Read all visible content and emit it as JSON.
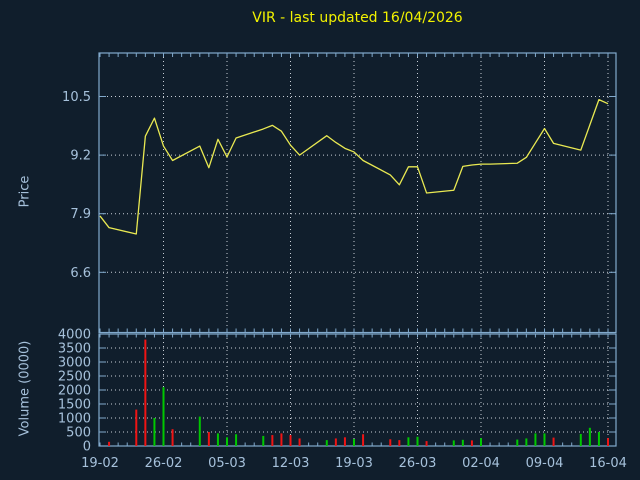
{
  "title": "VIR - last updated 16/04/2026",
  "colors": {
    "background": "#101e2c",
    "frame": "#82aacd",
    "tick_text": "#a6c1db",
    "title_text": "#f2f200",
    "price_line": "#e9e952",
    "grid": "#c7ced6",
    "volume_up": "#00c800",
    "volume_down": "#f01414"
  },
  "chart_data": [
    {
      "type": "line",
      "name": "price",
      "ylabel": "Price",
      "yticks": [
        10.5,
        9.2,
        7.9,
        6.6
      ],
      "ylim": [
        5.3,
        11.5
      ],
      "grid": true,
      "x_day_offsets": [
        0,
        1,
        4,
        5,
        6,
        7,
        8,
        11,
        12,
        13,
        14,
        15,
        18,
        19,
        20,
        21,
        22,
        25,
        26,
        27,
        28,
        29,
        32,
        33,
        34,
        35,
        36,
        39,
        40,
        41,
        42,
        43,
        46,
        47,
        48,
        49,
        50,
        53,
        54,
        55,
        56
      ],
      "prices": [
        7.85,
        7.59,
        7.45,
        9.62,
        10.02,
        9.4,
        9.08,
        9.4,
        8.92,
        9.55,
        9.16,
        9.58,
        9.78,
        9.86,
        9.73,
        9.42,
        9.2,
        9.63,
        9.48,
        9.35,
        9.27,
        9.08,
        8.76,
        8.54,
        8.94,
        8.94,
        8.36,
        8.42,
        8.95,
        8.98,
        9.0,
        9.0,
        9.02,
        9.15,
        9.47,
        9.79,
        9.46,
        9.31,
        9.87,
        10.43,
        10.34
      ]
    },
    {
      "type": "bar",
      "name": "volume",
      "ylabel": "Volume (0000)",
      "yticks": [
        4000,
        3500,
        3000,
        2500,
        2000,
        1500,
        1000,
        500,
        0
      ],
      "ylim": [
        0,
        4000
      ],
      "grid": true,
      "x_tick_labels": [
        "19-02",
        "26-02",
        "05-03",
        "12-03",
        "19-03",
        "26-03",
        "02-04",
        "09-04",
        "16-04"
      ],
      "x_tick_week_days": [
        0,
        7,
        14,
        21,
        28,
        35,
        42,
        49,
        56
      ],
      "x_day_offsets": [
        0,
        1,
        4,
        5,
        6,
        7,
        8,
        11,
        12,
        13,
        14,
        15,
        18,
        19,
        20,
        21,
        22,
        25,
        26,
        27,
        28,
        29,
        32,
        33,
        34,
        35,
        36,
        39,
        40,
        41,
        42,
        43,
        46,
        47,
        48,
        49,
        50,
        53,
        54,
        55,
        56
      ],
      "values": [
        0,
        150,
        1300,
        3800,
        1000,
        2100,
        600,
        1050,
        500,
        450,
        310,
        420,
        360,
        390,
        450,
        390,
        270,
        210,
        270,
        310,
        250,
        420,
        240,
        210,
        310,
        330,
        175,
        200,
        220,
        200,
        280,
        0,
        230,
        270,
        450,
        450,
        300,
        430,
        650,
        500,
        280
      ],
      "directions": [
        "",
        "down",
        "down",
        "down",
        "up",
        "up",
        "down",
        "up",
        "down",
        "up",
        "up",
        "up",
        "up",
        "down",
        "down",
        "down",
        "down",
        "up",
        "down",
        "down",
        "up",
        "down",
        "down",
        "down",
        "up",
        "up",
        "down",
        "up",
        "up",
        "down",
        "up",
        "",
        "up",
        "up",
        "up",
        "up",
        "down",
        "up",
        "up",
        "up",
        "down"
      ]
    }
  ]
}
